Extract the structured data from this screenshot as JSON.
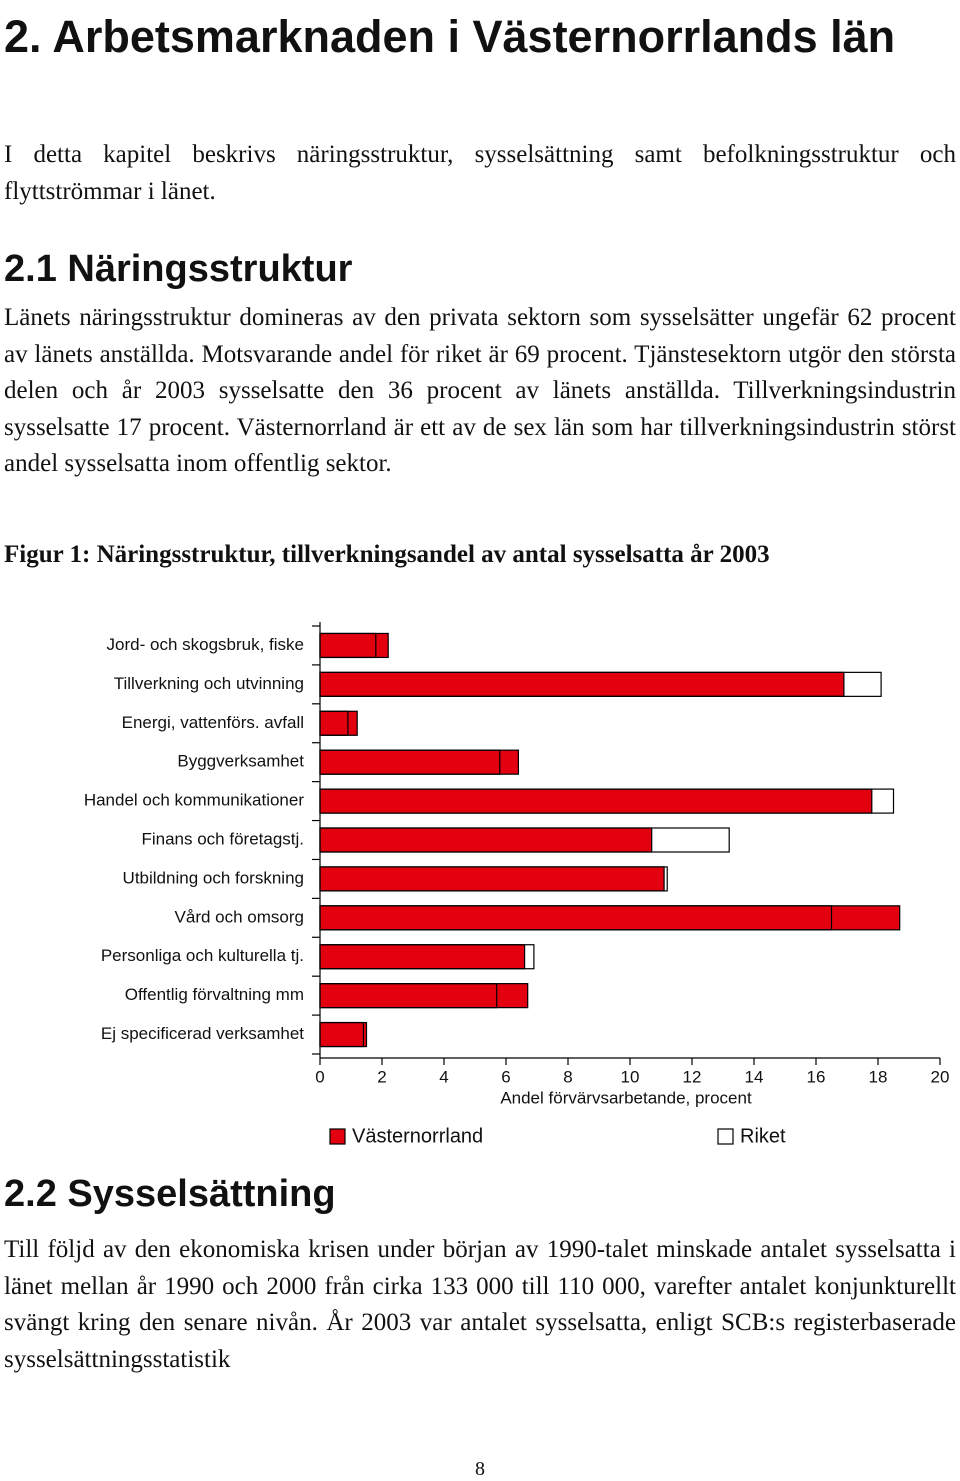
{
  "heading": "2. Arbetsmarknaden i Västernorrlands län",
  "intro": "I detta kapitel beskrivs näringsstruktur, sysselsättning samt befolkningsstruktur och flyttströmmar i länet.",
  "section1": {
    "title": "2.1 Näringsstruktur",
    "paragraph": "Länets näringsstruktur domineras av den privata sektorn som sysselsätter ungefär 62 procent av länets anställda. Motsvarande andel för riket är 69 procent. Tjänstesektorn utgör den största delen och år 2003 sysselsatte den 36 procent av länets anställda. Tillverkningsindustrin sysselsatte 17 procent. Västernorrland är ett av de sex län som har tillverkningsindustrin störst andel sysselsatta inom offentlig sektor."
  },
  "figure_caption": "Figur 1: Näringsstruktur, tillverkningsandel av antal sysselsatta år 2003",
  "chart_data": {
    "type": "bar",
    "orientation": "horizontal",
    "categories": [
      "Jord- och skogsbruk, fiske",
      "Tillverkning och utvinning",
      "Energi, vattenförs. avfall",
      "Byggverksamhet",
      "Handel och kommunikationer",
      "Finans och företagstj.",
      "Utbildning och forskning",
      "Vård och omsorg",
      "Personliga och kulturella tj.",
      "Offentlig förvaltning mm",
      "Ej specificerad verksamhet"
    ],
    "series": [
      {
        "name": "Västernorrland",
        "color": "#e3000f",
        "values": [
          2.2,
          16.9,
          1.2,
          6.4,
          17.8,
          10.7,
          11.1,
          18.7,
          6.6,
          6.7,
          1.5
        ]
      },
      {
        "name": "Riket",
        "color": "#ffffff",
        "values": [
          1.8,
          18.1,
          0.9,
          5.8,
          18.5,
          13.2,
          11.2,
          16.5,
          6.9,
          5.7,
          1.4
        ]
      }
    ],
    "xlim": [
      0,
      20
    ],
    "xticks": [
      0,
      2,
      4,
      6,
      8,
      10,
      12,
      14,
      16,
      18,
      20
    ],
    "x_label": "Andel förvärvsarbetande, procent"
  },
  "section2": {
    "title": "2.2 Sysselsättning",
    "paragraph": "Till följd av den ekonomiska krisen under början av 1990-talet minskade antalet sysselsatta i länet mellan år 1990 och 2000 från cirka 133 000 till 110 000, varefter antalet konjunkturellt svängt kring den senare nivån. År 2003 var antalet sysselsatta, enligt SCB:s registerbaserade sysselsättningsstatistik"
  },
  "page_number": "8"
}
